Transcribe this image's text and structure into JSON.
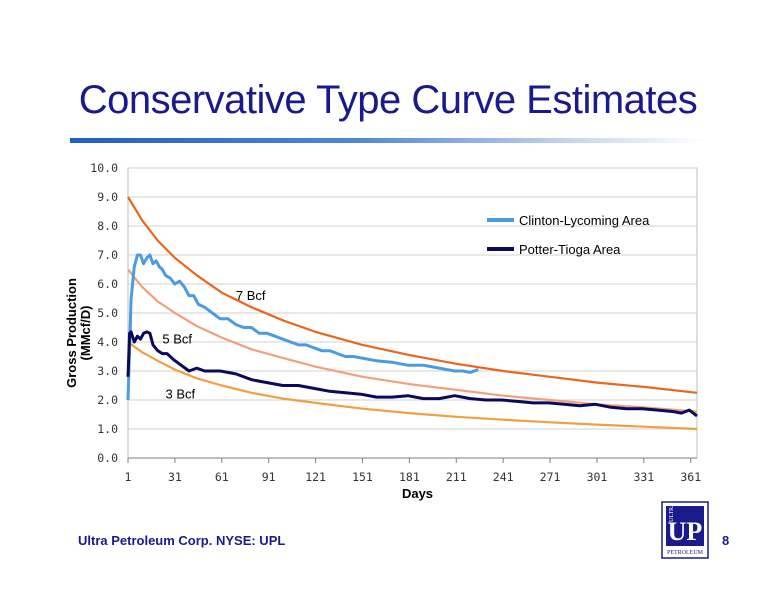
{
  "slide": {
    "title": "Conservative Type Curve Estimates",
    "footer_company": "Ultra Petroleum Corp. NYSE: UPL",
    "page_number": "8",
    "logo_text": {
      "word_top": "ULTRA",
      "letters": "UP",
      "word_bottom": "PETROLEUM"
    }
  },
  "colors": {
    "title": "#1a1a8c",
    "clinton": "#4a9be0",
    "potter": "#0a0a5c",
    "curve_7bcf": "#e8671c",
    "curve_5bcf": "#f0a07a",
    "curve_3bcf": "#f0a040"
  },
  "chart_data": {
    "type": "line",
    "xlabel": "Days",
    "ylabel_lines": [
      "Gross Production",
      "(MMcf/D)"
    ],
    "xlim": [
      1,
      365
    ],
    "ylim": [
      0,
      10
    ],
    "x_ticks": [
      "1",
      "31",
      "61",
      "91",
      "121",
      "151",
      "181",
      "211",
      "241",
      "271",
      "301",
      "331",
      "361"
    ],
    "y_ticks": [
      "0.0",
      "1.0",
      "2.0",
      "3.0",
      "4.0",
      "5.0",
      "6.0",
      "7.0",
      "8.0",
      "9.0",
      "10.0"
    ],
    "grid": "horizontal",
    "legend_position": "top-right",
    "series": [
      {
        "name": "Clinton-Lycoming Area",
        "x": [
          1,
          3,
          5,
          7,
          9,
          11,
          13,
          15,
          17,
          19,
          21,
          23,
          25,
          28,
          31,
          34,
          37,
          40,
          43,
          46,
          50,
          55,
          60,
          65,
          70,
          75,
          80,
          85,
          90,
          95,
          100,
          105,
          110,
          115,
          120,
          125,
          130,
          135,
          140,
          145,
          150,
          160,
          170,
          180,
          190,
          200,
          205,
          210,
          215,
          220,
          225
        ],
        "y": [
          2.0,
          5.5,
          6.6,
          7.0,
          7.0,
          6.7,
          6.9,
          7.0,
          6.7,
          6.8,
          6.6,
          6.5,
          6.3,
          6.2,
          6.0,
          6.1,
          5.9,
          5.6,
          5.6,
          5.3,
          5.2,
          5.0,
          4.8,
          4.8,
          4.6,
          4.5,
          4.5,
          4.3,
          4.3,
          4.2,
          4.1,
          4.0,
          3.9,
          3.9,
          3.8,
          3.7,
          3.7,
          3.6,
          3.5,
          3.5,
          3.45,
          3.35,
          3.3,
          3.2,
          3.2,
          3.1,
          3.05,
          3.0,
          3.0,
          2.95,
          3.05
        ]
      },
      {
        "name": "Potter-Tioga Area",
        "x": [
          1,
          2,
          3,
          5,
          7,
          9,
          11,
          13,
          15,
          17,
          20,
          23,
          26,
          30,
          35,
          40,
          45,
          50,
          55,
          60,
          70,
          80,
          90,
          100,
          110,
          120,
          130,
          140,
          150,
          160,
          170,
          180,
          190,
          200,
          210,
          220,
          230,
          240,
          250,
          260,
          270,
          280,
          290,
          300,
          310,
          320,
          330,
          340,
          350,
          355,
          360,
          365
        ],
        "y": [
          2.8,
          4.3,
          4.35,
          4.0,
          4.2,
          4.1,
          4.3,
          4.35,
          4.3,
          3.9,
          3.7,
          3.6,
          3.6,
          3.4,
          3.2,
          3.0,
          3.1,
          3.0,
          3.0,
          3.0,
          2.9,
          2.7,
          2.6,
          2.5,
          2.5,
          2.4,
          2.3,
          2.25,
          2.2,
          2.1,
          2.1,
          2.15,
          2.05,
          2.05,
          2.15,
          2.05,
          2.0,
          2.0,
          1.95,
          1.9,
          1.9,
          1.85,
          1.8,
          1.85,
          1.75,
          1.7,
          1.7,
          1.65,
          1.6,
          1.55,
          1.65,
          1.45
        ]
      },
      {
        "x": [
          1,
          10,
          20,
          31,
          45,
          61,
          80,
          100,
          121,
          151,
          181,
          211,
          241,
          271,
          301,
          331,
          365
        ],
        "y": [
          9.0,
          8.2,
          7.5,
          6.9,
          6.3,
          5.7,
          5.2,
          4.75,
          4.35,
          3.9,
          3.55,
          3.25,
          3.0,
          2.8,
          2.6,
          2.45,
          2.25
        ]
      },
      {
        "x": [
          1,
          10,
          20,
          31,
          45,
          61,
          80,
          100,
          121,
          151,
          181,
          211,
          241,
          271,
          301,
          331,
          365
        ],
        "y": [
          6.5,
          5.9,
          5.4,
          5.0,
          4.55,
          4.15,
          3.75,
          3.45,
          3.15,
          2.8,
          2.55,
          2.35,
          2.15,
          2.0,
          1.85,
          1.75,
          1.6
        ]
      },
      {
        "x": [
          1,
          10,
          20,
          31,
          45,
          61,
          80,
          100,
          121,
          151,
          181,
          211,
          241,
          271,
          301,
          331,
          365
        ],
        "y": [
          4.0,
          3.65,
          3.35,
          3.05,
          2.75,
          2.5,
          2.25,
          2.05,
          1.9,
          1.7,
          1.55,
          1.42,
          1.32,
          1.23,
          1.15,
          1.08,
          1.0
        ]
      }
    ],
    "annotations": [
      {
        "text": "7 Bcf",
        "x": 70,
        "y": 5.45
      },
      {
        "text": "5 Bcf",
        "x": 23,
        "y": 3.95
      },
      {
        "text": "3 Bcf",
        "x": 25,
        "y": 2.05
      }
    ]
  }
}
